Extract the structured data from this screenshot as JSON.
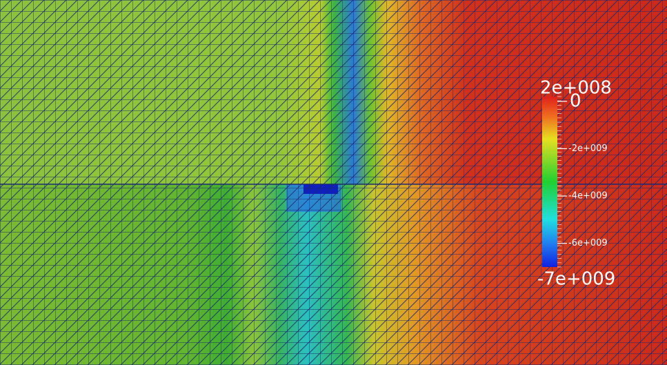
{
  "colorbar": {
    "range": [
      {
        "value": 200000000,
        "label": "2e+008"
      },
      {
        "value": -7000000000,
        "label": "-7e+009"
      }
    ],
    "ticks": [
      {
        "value": 0,
        "label": "0"
      },
      {
        "value": -2000000000,
        "label": "-2e+009"
      },
      {
        "value": -4000000000,
        "label": "-4e+009"
      },
      {
        "value": -6000000000,
        "label": "-6e+009"
      }
    ]
  }
}
